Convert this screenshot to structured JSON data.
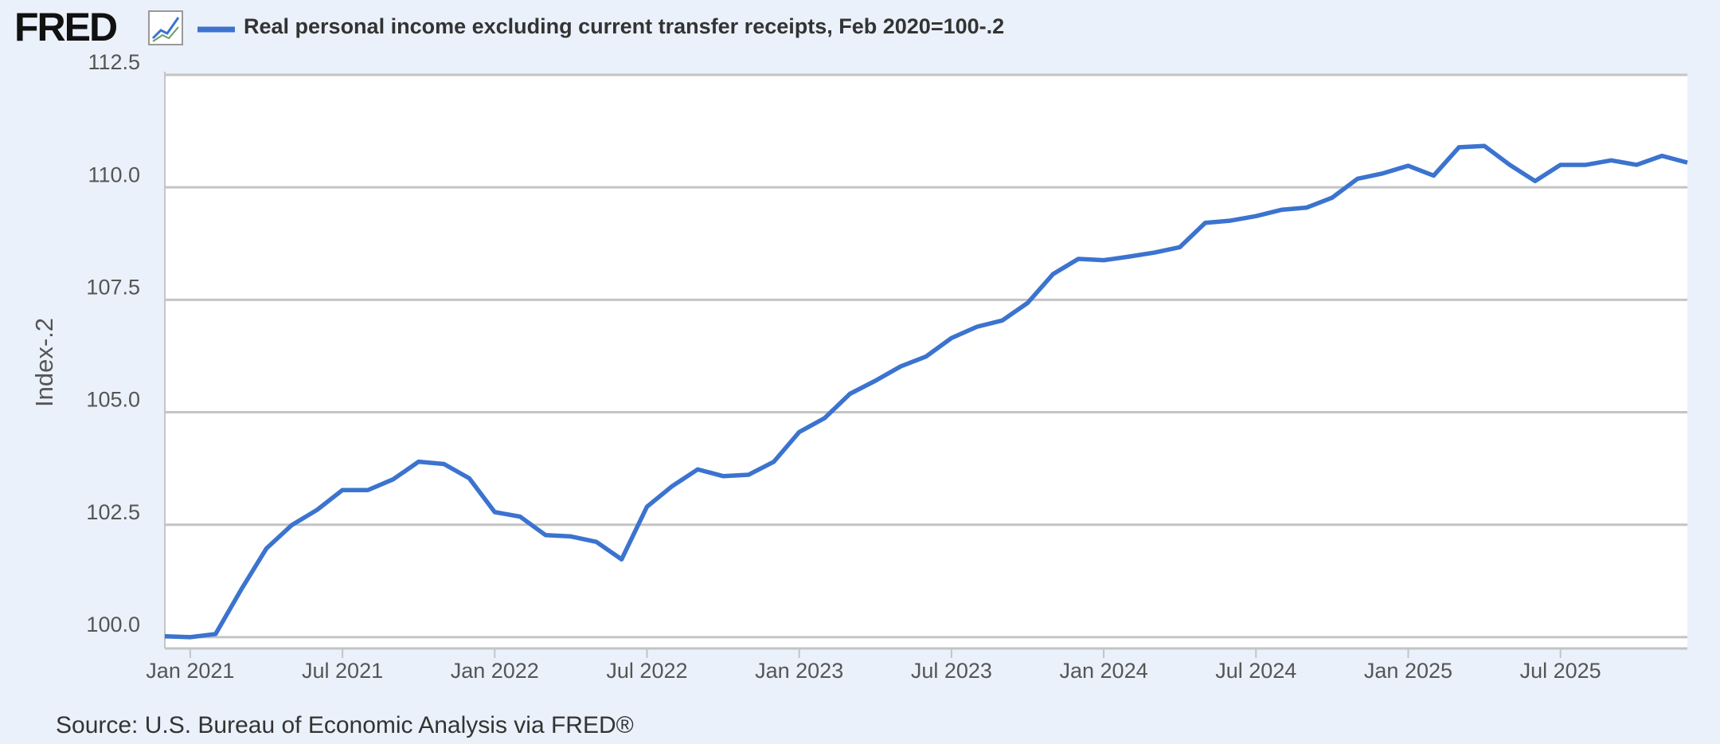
{
  "logo": "FRED",
  "chart_data": {
    "type": "line",
    "title": "Real personal income excluding current transfer receipts, Feb 2020=100-.2",
    "y_label": "Index-.2",
    "source": "Source: U.S. Bureau of Economic Analysis via FRED®",
    "x": [
      "2020-12",
      "2021-01",
      "2021-02",
      "2021-03",
      "2021-04",
      "2021-05",
      "2021-06",
      "2021-07",
      "2021-08",
      "2021-09",
      "2021-10",
      "2021-11",
      "2021-12",
      "2022-01",
      "2022-02",
      "2022-03",
      "2022-04",
      "2022-05",
      "2022-06",
      "2022-07",
      "2022-08",
      "2022-09",
      "2022-10",
      "2022-11",
      "2022-12",
      "2023-01",
      "2023-02",
      "2023-03",
      "2023-04",
      "2023-05",
      "2023-06",
      "2023-07",
      "2023-08",
      "2023-09",
      "2023-10",
      "2023-11",
      "2023-12",
      "2024-01",
      "2024-02",
      "2024-03",
      "2024-04",
      "2024-05",
      "2024-06",
      "2024-07",
      "2024-08",
      "2024-09",
      "2024-10",
      "2024-11",
      "2024-12",
      "2025-01",
      "2025-02",
      "2025-03",
      "2025-04",
      "2025-05",
      "2025-06",
      "2025-07",
      "2025-08",
      "2025-09",
      "2025-10",
      "2025-11",
      "2025-12"
    ],
    "series": [
      {
        "name": "Real personal income excluding current transfer receipts, Feb 2020=100-.2",
        "color": "#3b73cf",
        "values": [
          100.02,
          100.0,
          100.07,
          101.05,
          101.97,
          102.49,
          102.83,
          103.27,
          103.27,
          103.51,
          103.9,
          103.85,
          103.53,
          102.78,
          102.68,
          102.27,
          102.24,
          102.12,
          101.73,
          102.9,
          103.36,
          103.73,
          103.58,
          103.61,
          103.9,
          104.56,
          104.87,
          105.41,
          105.7,
          106.02,
          106.24,
          106.65,
          106.9,
          107.04,
          107.43,
          108.07,
          108.41,
          108.38,
          108.46,
          108.55,
          108.67,
          109.21,
          109.26,
          109.36,
          109.5,
          109.55,
          109.77,
          110.19,
          110.31,
          110.48,
          110.26,
          110.89,
          110.92,
          110.5,
          110.14,
          110.5,
          110.5,
          110.6,
          110.5,
          110.7,
          110.55
        ]
      }
    ],
    "xlim": [
      "2020-12",
      "2025-12"
    ],
    "xticks": [
      {
        "value": "2021-01",
        "label": "Jan 2021"
      },
      {
        "value": "2021-07",
        "label": "Jul 2021"
      },
      {
        "value": "2022-01",
        "label": "Jan 2022"
      },
      {
        "value": "2022-07",
        "label": "Jul 2022"
      },
      {
        "value": "2023-01",
        "label": "Jan 2023"
      },
      {
        "value": "2023-07",
        "label": "Jul 2023"
      },
      {
        "value": "2024-01",
        "label": "Jan 2024"
      },
      {
        "value": "2024-07",
        "label": "Jul 2024"
      },
      {
        "value": "2025-01",
        "label": "Jan 2025"
      },
      {
        "value": "2025-07",
        "label": "Jul 2025"
      }
    ],
    "ylim": [
      99.75,
      112.5
    ],
    "yticks": [
      {
        "value": 100,
        "label": "100.0"
      },
      102.5,
      {
        "value": 105,
        "label": "105.0"
      },
      107.5,
      {
        "value": 110,
        "label": "110.0"
      },
      112.5
    ],
    "grid": true
  }
}
